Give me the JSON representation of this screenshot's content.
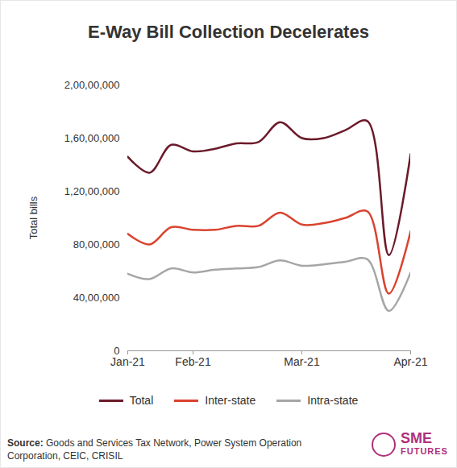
{
  "chart_data": {
    "type": "line",
    "title": "E-Way Bill Collection Decelerates",
    "y_label": "Total bills",
    "categories": [
      "Jan-21",
      null,
      null,
      "Feb-21",
      null,
      null,
      null,
      null,
      "Mar-21",
      null,
      null,
      null,
      null,
      "Apr-21"
    ],
    "series": [
      {
        "name": "Total",
        "color": "#6b1a2a",
        "values": [
          14600000,
          13400000,
          15500000,
          15000000,
          15200000,
          15600000,
          15700000,
          17200000,
          16000000,
          16000000,
          16600000,
          17300000,
          7200000,
          14800000
        ]
      },
      {
        "name": "Inter-state",
        "color": "#d9432f",
        "values": [
          8800000,
          8000000,
          9300000,
          9100000,
          9100000,
          9400000,
          9400000,
          10400000,
          9500000,
          9600000,
          10000000,
          10500000,
          4300000,
          9000000
        ]
      },
      {
        "name": "Intra-state",
        "color": "#a6a6a6",
        "values": [
          5800000,
          5400000,
          6200000,
          5900000,
          6100000,
          6200000,
          6300000,
          6800000,
          6400000,
          6500000,
          6700000,
          6900000,
          3000000,
          5900000
        ]
      }
    ],
    "ylim": [
      0,
      20000000
    ],
    "yticks": [
      0,
      {
        "value": 4000000,
        "label": "40,00,000"
      },
      {
        "value": 8000000,
        "label": "80,00,000"
      },
      {
        "value": 12000000,
        "label": "1,20,00,000"
      },
      {
        "value": 16000000,
        "label": "1,60,00,000"
      },
      {
        "value": 20000000,
        "label": "2,00,00,000"
      }
    ],
    "grid": false,
    "legend": "bottom",
    "source": "Source: Goods and Services Tax Network, Power System Operation Corporation, CEIC, CRISIL",
    "logo": [
      "SME",
      "FUTURES"
    ]
  }
}
